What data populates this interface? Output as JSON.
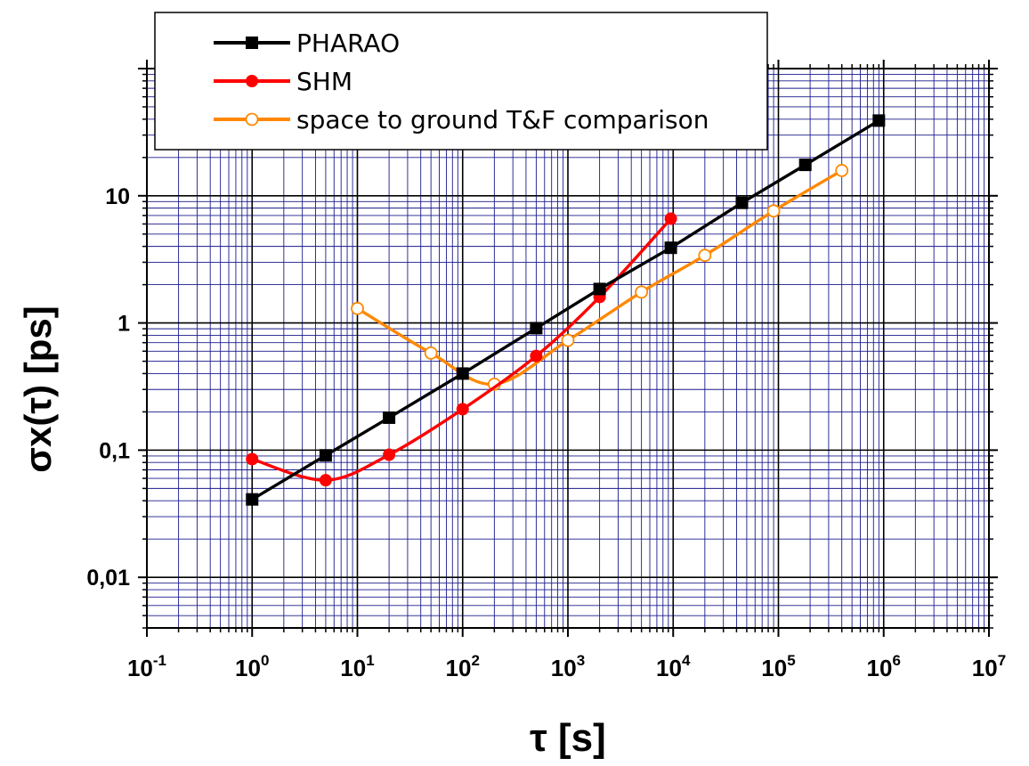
{
  "chart_data": {
    "type": "line",
    "xscale": "log",
    "yscale": "log",
    "xlim": [
      0.1,
      10000000
    ],
    "ylim": [
      0.004,
      100
    ],
    "grid": true,
    "legend_position": "top-left",
    "ylabel": "σx(τ)  [ps]",
    "xlabel": "τ [s]",
    "x_ticks": [
      {
        "value": 0.1,
        "base": "10",
        "exp": "-1"
      },
      {
        "value": 1,
        "base": "10",
        "exp": "0"
      },
      {
        "value": 10,
        "base": "10",
        "exp": "1"
      },
      {
        "value": 100,
        "base": "10",
        "exp": "2"
      },
      {
        "value": 1000,
        "base": "10",
        "exp": "3"
      },
      {
        "value": 10000,
        "base": "10",
        "exp": "4"
      },
      {
        "value": 100000,
        "base": "10",
        "exp": "5"
      },
      {
        "value": 1000000,
        "base": "10",
        "exp": "6"
      },
      {
        "value": 10000000,
        "base": "10",
        "exp": "7"
      }
    ],
    "y_ticks": [
      {
        "value": 0.01,
        "label": "0,01"
      },
      {
        "value": 0.1,
        "label": "0,1"
      },
      {
        "value": 1,
        "label": "1"
      },
      {
        "value": 10,
        "label": "10"
      }
    ],
    "series": [
      {
        "name": "PHARAO",
        "color": "#000000",
        "marker": "square-filled",
        "x": [
          1,
          5,
          20,
          100,
          500,
          2000,
          9500,
          45000,
          180000,
          900000
        ],
        "y": [
          0.041,
          0.091,
          0.18,
          0.4,
          0.91,
          1.85,
          3.9,
          8.8,
          17.5,
          39
        ]
      },
      {
        "name": "SHM",
        "color": "#ff0000",
        "marker": "circle-filled",
        "x": [
          1,
          5,
          20,
          100,
          500,
          2000,
          9500
        ],
        "y": [
          0.085,
          0.058,
          0.092,
          0.21,
          0.55,
          1.6,
          6.6
        ]
      },
      {
        "name": "space to ground T&F comparison",
        "color": "#ff8800",
        "marker": "circle-open",
        "x": [
          10,
          50,
          200,
          1000,
          5000,
          20000,
          90000,
          400000
        ],
        "y": [
          1.3,
          0.58,
          0.33,
          0.73,
          1.75,
          3.4,
          7.6,
          15.8
        ]
      }
    ]
  }
}
